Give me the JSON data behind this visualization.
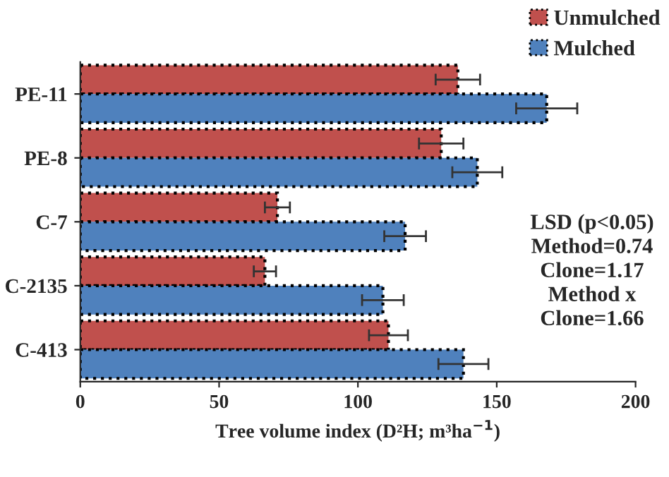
{
  "chart_data": {
    "type": "bar",
    "orientation": "horizontal",
    "categories": [
      "PE-11",
      "PE-8",
      "C-7",
      "C-2135",
      "C-413"
    ],
    "series": [
      {
        "name": "Unmulched",
        "color": "#c0504d",
        "values": [
          136,
          130,
          71,
          66.5,
          111
        ],
        "errors": [
          8,
          8,
          4.5,
          4,
          7
        ]
      },
      {
        "name": "Mulched",
        "color": "#4f81bd",
        "values": [
          168,
          143,
          117,
          109,
          138
        ],
        "errors": [
          11,
          9,
          7.5,
          7.5,
          9
        ]
      }
    ],
    "xlim": [
      0,
      200
    ],
    "xticks": [
      0,
      50,
      100,
      150,
      200
    ],
    "xlabel": "Tree volume index (D²H; m³ha$^{−1}$)",
    "annotations": [
      "LSD (p<0.05)\nMethod=0.74\nClone=1.17\nMethod x\nClone=1.66"
    ],
    "legend": "top right",
    "grid": false
  }
}
